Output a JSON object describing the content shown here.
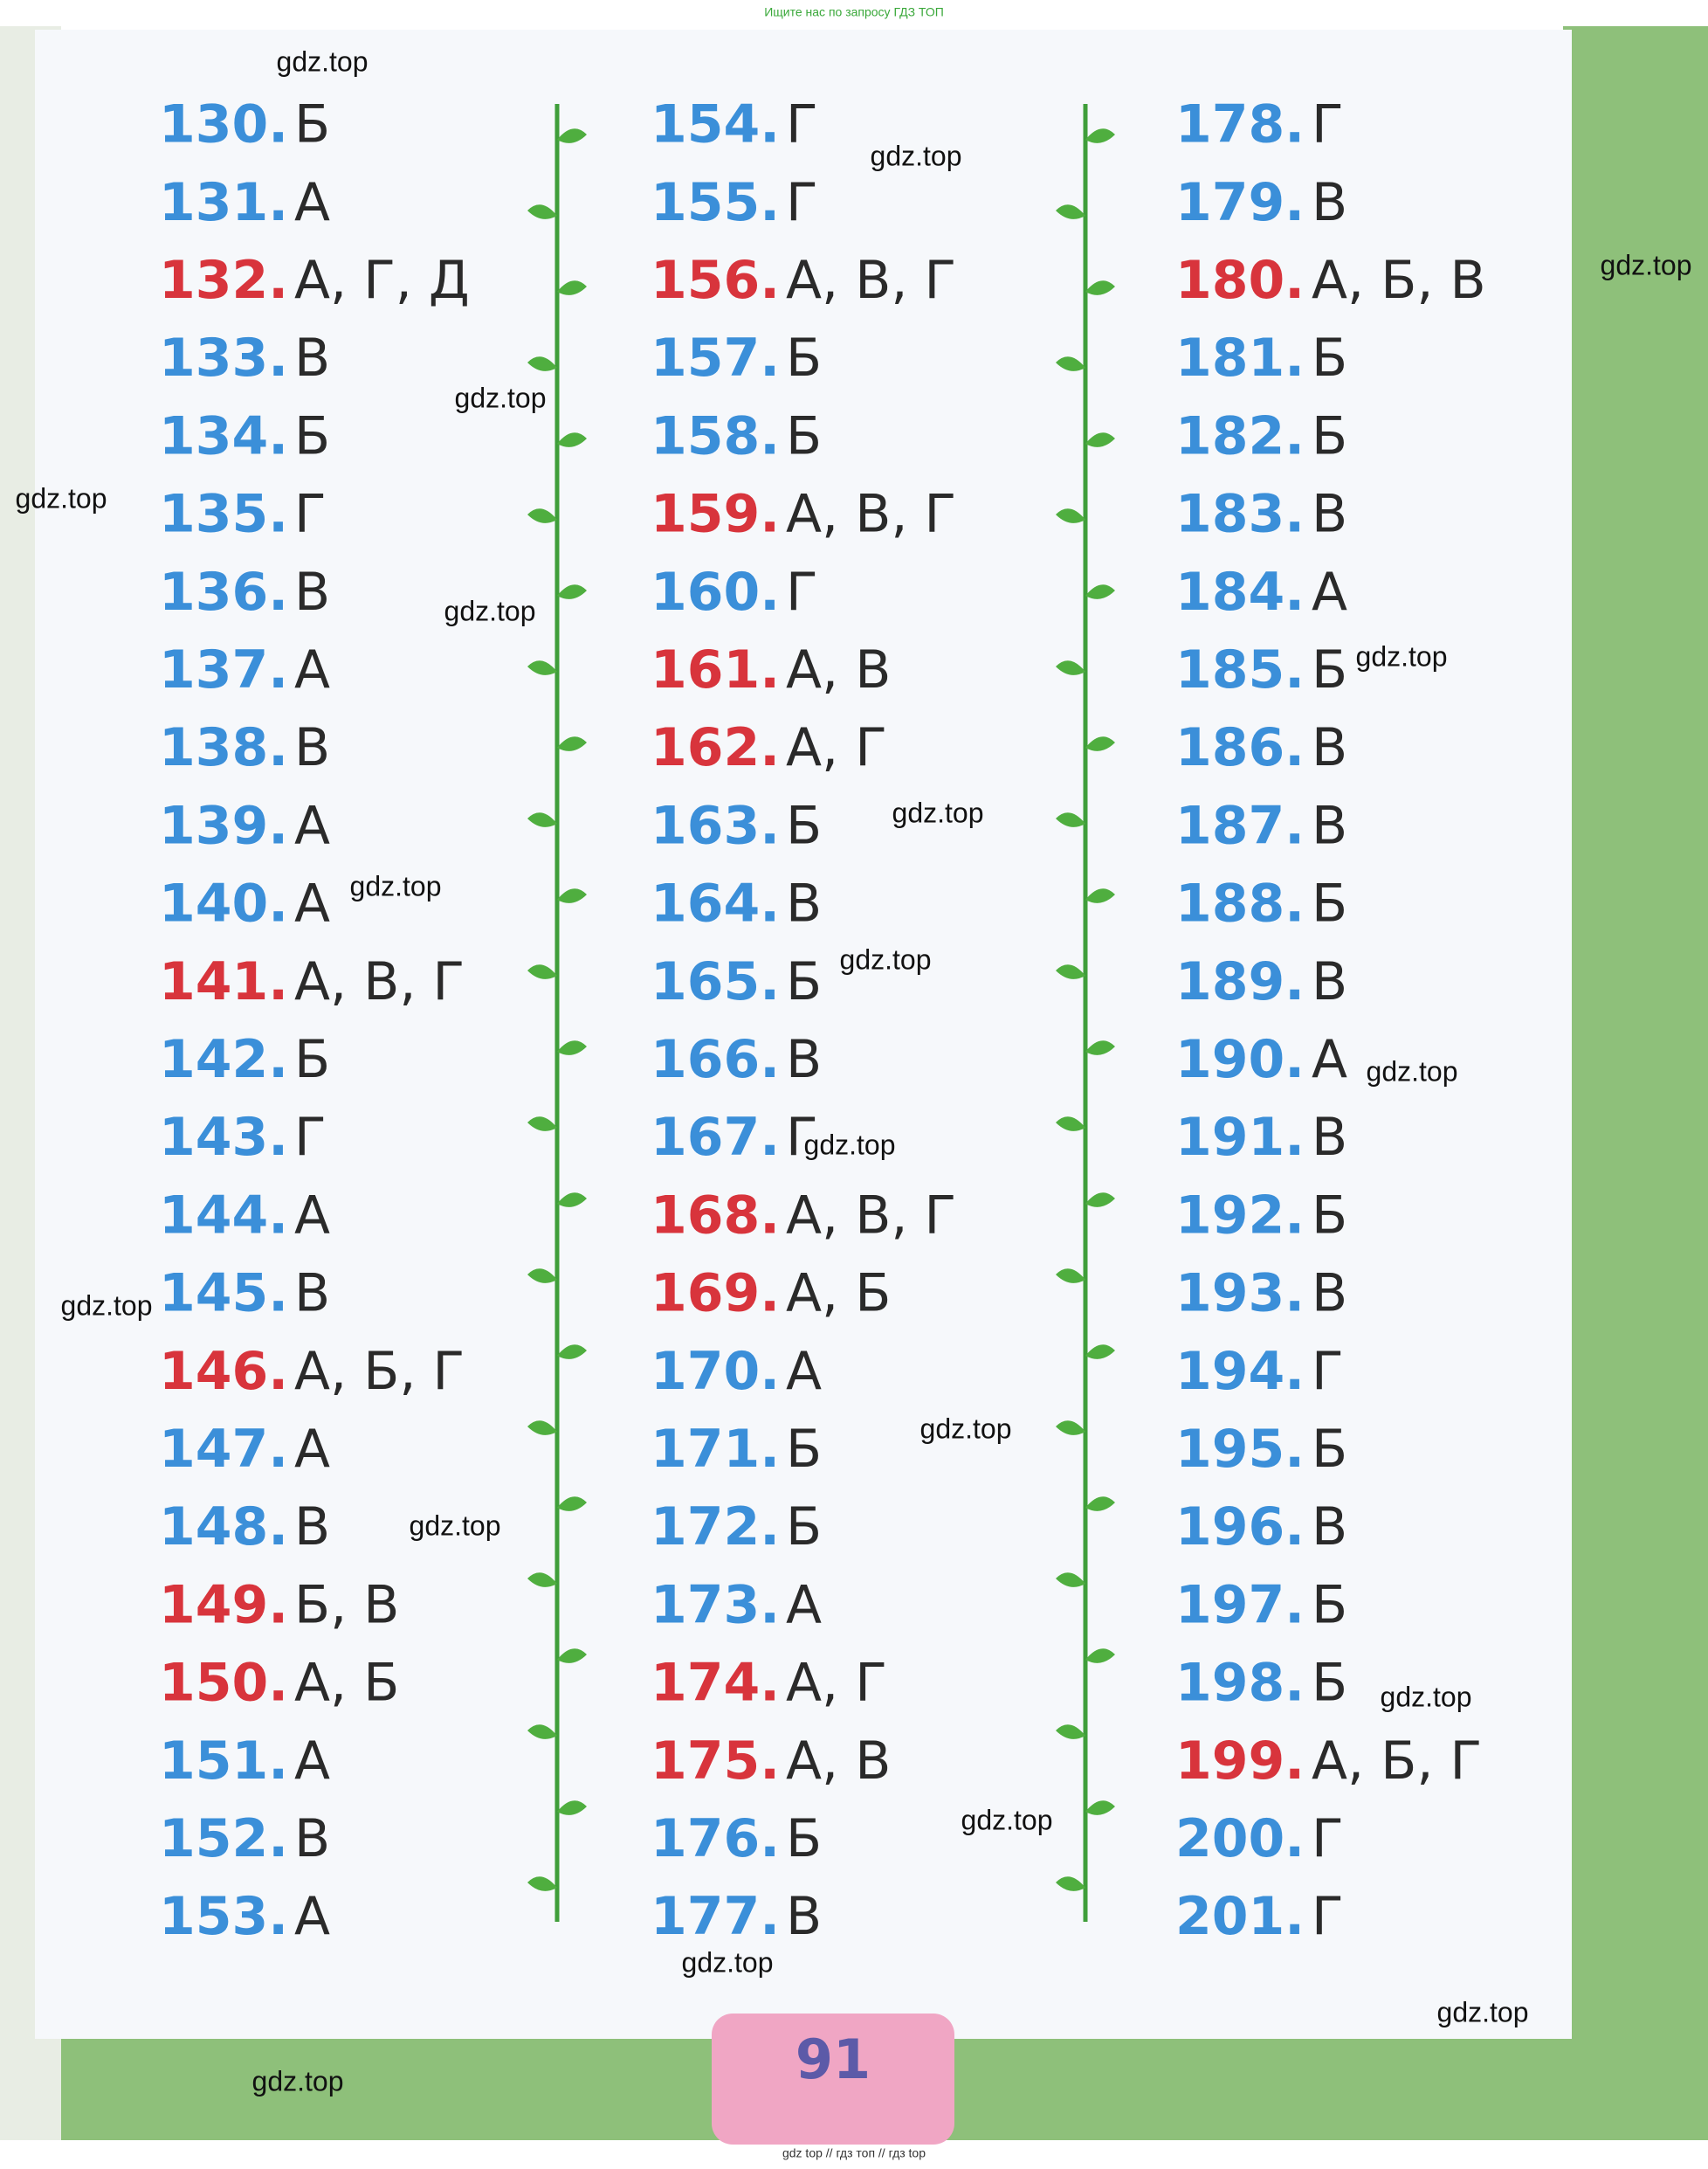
{
  "header": {
    "note": "Ищите нас по запросу ГДЗ ТОП"
  },
  "columns": [
    {
      "items": [
        {
          "number": "130.",
          "answer": "Б",
          "color": "#3b8fd9"
        },
        {
          "number": "131.",
          "answer": "А",
          "color": "#3b8fd9"
        },
        {
          "number": "132.",
          "answer": "А,  Г,  Д",
          "color": "#d8343c"
        },
        {
          "number": "133.",
          "answer": "В",
          "color": "#3b8fd9"
        },
        {
          "number": "134.",
          "answer": "Б",
          "color": "#3b8fd9"
        },
        {
          "number": "135.",
          "answer": "Г",
          "color": "#3b8fd9"
        },
        {
          "number": "136.",
          "answer": "В",
          "color": "#3b8fd9"
        },
        {
          "number": "137.",
          "answer": "А",
          "color": "#3b8fd9"
        },
        {
          "number": "138.",
          "answer": "В",
          "color": "#3b8fd9"
        },
        {
          "number": "139.",
          "answer": "А",
          "color": "#3b8fd9"
        },
        {
          "number": "140.",
          "answer": "А",
          "color": "#3b8fd9"
        },
        {
          "number": "141.",
          "answer": "А,  В,  Г",
          "color": "#d8343c"
        },
        {
          "number": "142.",
          "answer": "Б",
          "color": "#3b8fd9"
        },
        {
          "number": "143.",
          "answer": "Г",
          "color": "#3b8fd9"
        },
        {
          "number": "144.",
          "answer": "А",
          "color": "#3b8fd9"
        },
        {
          "number": "145.",
          "answer": "В",
          "color": "#3b8fd9"
        },
        {
          "number": "146.",
          "answer": "А,  Б,  Г",
          "color": "#d8343c"
        },
        {
          "number": "147.",
          "answer": "А",
          "color": "#3b8fd9"
        },
        {
          "number": "148.",
          "answer": "В",
          "color": "#3b8fd9"
        },
        {
          "number": "149.",
          "answer": "Б,  В",
          "color": "#d8343c"
        },
        {
          "number": "150.",
          "answer": "А,  Б",
          "color": "#d8343c"
        },
        {
          "number": "151.",
          "answer": "А",
          "color": "#3b8fd9"
        },
        {
          "number": "152.",
          "answer": "В",
          "color": "#3b8fd9"
        },
        {
          "number": "153.",
          "answer": "А",
          "color": "#3b8fd9"
        }
      ]
    },
    {
      "items": [
        {
          "number": "154.",
          "answer": "Г",
          "color": "#3b8fd9"
        },
        {
          "number": "155.",
          "answer": "Г",
          "color": "#3b8fd9"
        },
        {
          "number": "156.",
          "answer": "А,  В,  Г",
          "color": "#d8343c"
        },
        {
          "number": "157.",
          "answer": "Б",
          "color": "#3b8fd9"
        },
        {
          "number": "158.",
          "answer": "Б",
          "color": "#3b8fd9"
        },
        {
          "number": "159.",
          "answer": "А,  В,  Г",
          "color": "#d8343c"
        },
        {
          "number": "160.",
          "answer": "Г",
          "color": "#3b8fd9"
        },
        {
          "number": "161.",
          "answer": "А,  В",
          "color": "#d8343c"
        },
        {
          "number": "162.",
          "answer": "А,  Г",
          "color": "#d8343c"
        },
        {
          "number": "163.",
          "answer": "Б",
          "color": "#3b8fd9"
        },
        {
          "number": "164.",
          "answer": "В",
          "color": "#3b8fd9"
        },
        {
          "number": "165.",
          "answer": "Б",
          "color": "#3b8fd9"
        },
        {
          "number": "166.",
          "answer": "В",
          "color": "#3b8fd9"
        },
        {
          "number": "167.",
          "answer": "Г",
          "color": "#3b8fd9"
        },
        {
          "number": "168.",
          "answer": "А,  В,  Г",
          "color": "#d8343c"
        },
        {
          "number": "169.",
          "answer": "А,  Б",
          "color": "#d8343c"
        },
        {
          "number": "170.",
          "answer": "А",
          "color": "#3b8fd9"
        },
        {
          "number": "171.",
          "answer": "Б",
          "color": "#3b8fd9"
        },
        {
          "number": "172.",
          "answer": "Б",
          "color": "#3b8fd9"
        },
        {
          "number": "173.",
          "answer": "А",
          "color": "#3b8fd9"
        },
        {
          "number": "174.",
          "answer": "А,  Г",
          "color": "#d8343c"
        },
        {
          "number": "175.",
          "answer": "А,  В",
          "color": "#d8343c"
        },
        {
          "number": "176.",
          "answer": "Б",
          "color": "#3b8fd9"
        },
        {
          "number": "177.",
          "answer": "В",
          "color": "#3b8fd9"
        }
      ]
    },
    {
      "items": [
        {
          "number": "178.",
          "answer": "Г",
          "color": "#3b8fd9"
        },
        {
          "number": "179.",
          "answer": "В",
          "color": "#3b8fd9"
        },
        {
          "number": "180.",
          "answer": "А,  Б,  В",
          "color": "#d8343c"
        },
        {
          "number": "181.",
          "answer": "Б",
          "color": "#3b8fd9"
        },
        {
          "number": "182.",
          "answer": "Б",
          "color": "#3b8fd9"
        },
        {
          "number": "183.",
          "answer": "В",
          "color": "#3b8fd9"
        },
        {
          "number": "184.",
          "answer": "А",
          "color": "#3b8fd9"
        },
        {
          "number": "185.",
          "answer": "Б",
          "color": "#3b8fd9"
        },
        {
          "number": "186.",
          "answer": "В",
          "color": "#3b8fd9"
        },
        {
          "number": "187.",
          "answer": "В",
          "color": "#3b8fd9"
        },
        {
          "number": "188.",
          "answer": "Б",
          "color": "#3b8fd9"
        },
        {
          "number": "189.",
          "answer": "В",
          "color": "#3b8fd9"
        },
        {
          "number": "190.",
          "answer": "А",
          "color": "#3b8fd9"
        },
        {
          "number": "191.",
          "answer": "В",
          "color": "#3b8fd9"
        },
        {
          "number": "192.",
          "answer": "Б",
          "color": "#3b8fd9"
        },
        {
          "number": "193.",
          "answer": "В",
          "color": "#3b8fd9"
        },
        {
          "number": "194.",
          "answer": "Г",
          "color": "#3b8fd9"
        },
        {
          "number": "195.",
          "answer": "Б",
          "color": "#3b8fd9"
        },
        {
          "number": "196.",
          "answer": "В",
          "color": "#3b8fd9"
        },
        {
          "number": "197.",
          "answer": "Б",
          "color": "#3b8fd9"
        },
        {
          "number": "198.",
          "answer": "Б",
          "color": "#3b8fd9"
        },
        {
          "number": "199.",
          "answer": "А,  Б,  Г",
          "color": "#d8343c"
        },
        {
          "number": "200.",
          "answer": "Г",
          "color": "#3b8fd9"
        },
        {
          "number": "201.",
          "answer": "Г",
          "color": "#3b8fd9"
        }
      ]
    }
  ],
  "page_number": "91",
  "watermarks": [
    "gdz.top",
    "gdz.top",
    "gdz.top",
    "gdz.top",
    "gdz.top",
    "gdz.top",
    "gdz.top",
    "gdz.top",
    "gdz.top",
    "gdz.top",
    "gdz.top",
    "gdz.top",
    "gdz.top",
    "gdz.top",
    "gdz.top",
    "gdz.top",
    "gdz.top",
    "gdz.top",
    "gdz.top",
    "gdz.top"
  ],
  "footer": {
    "note": "gdz top  //  гдз топ  //  гдз top"
  }
}
